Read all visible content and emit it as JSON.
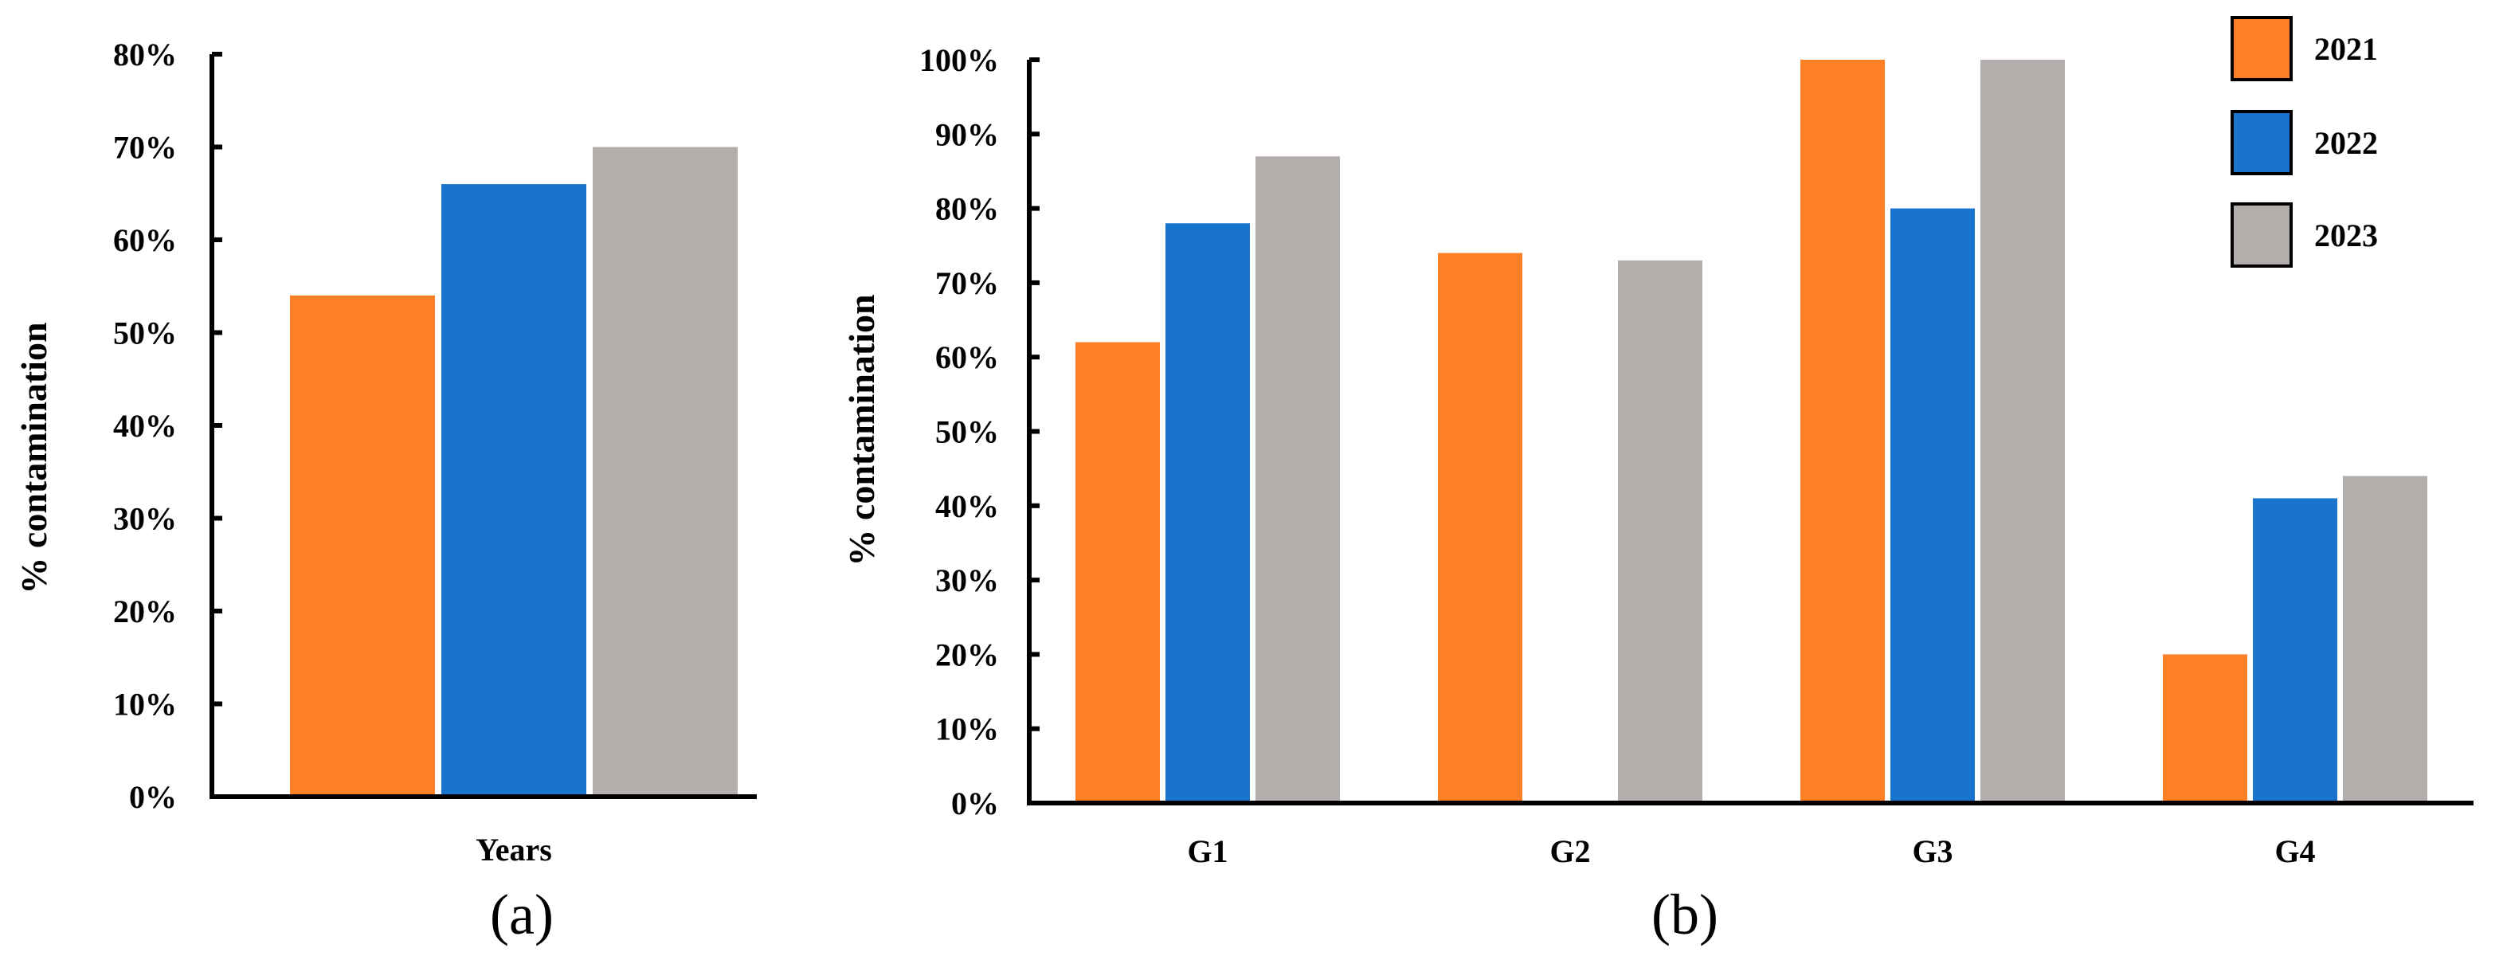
{
  "colors": {
    "2021": "#FF7F27",
    "2022": "#1874CD",
    "2023": "#B3AEAC"
  },
  "legend": {
    "entries": [
      {
        "label": "2021",
        "color_key": "2021"
      },
      {
        "label": "2022",
        "color_key": "2022"
      },
      {
        "label": "2023",
        "color_key": "2023"
      }
    ]
  },
  "chart_data": [
    {
      "id": "a",
      "type": "bar",
      "panel_label": "(a)",
      "xlabel": "Years",
      "ylabel": "% contamination",
      "ylim": [
        0,
        80
      ],
      "yticks": [
        0,
        10,
        20,
        30,
        40,
        50,
        60,
        70,
        80
      ],
      "ytick_labels": [
        "0%",
        "10%",
        "20%",
        "30%",
        "40%",
        "50%",
        "60%",
        "70%",
        "80%"
      ],
      "categories": [
        ""
      ],
      "series": [
        {
          "name": "2021",
          "values": [
            54
          ]
        },
        {
          "name": "2022",
          "values": [
            66
          ]
        },
        {
          "name": "2023",
          "values": [
            70
          ]
        }
      ]
    },
    {
      "id": "b",
      "type": "bar",
      "panel_label": "(b)",
      "xlabel": "",
      "ylabel": "% contamination",
      "ylim": [
        0,
        100
      ],
      "yticks": [
        0,
        10,
        20,
        30,
        40,
        50,
        60,
        70,
        80,
        90,
        100
      ],
      "ytick_labels": [
        "0%",
        "10%",
        "20%",
        "30%",
        "40%",
        "50%",
        "60%",
        "70%",
        "80%",
        "90%",
        "100%"
      ],
      "categories": [
        "G1",
        "G2",
        "G3",
        "G4"
      ],
      "series": [
        {
          "name": "2021",
          "values": [
            62,
            74,
            100,
            20
          ]
        },
        {
          "name": "2022",
          "values": [
            78,
            0,
            80,
            41
          ]
        },
        {
          "name": "2023",
          "values": [
            87,
            73,
            100,
            44
          ]
        }
      ]
    }
  ]
}
